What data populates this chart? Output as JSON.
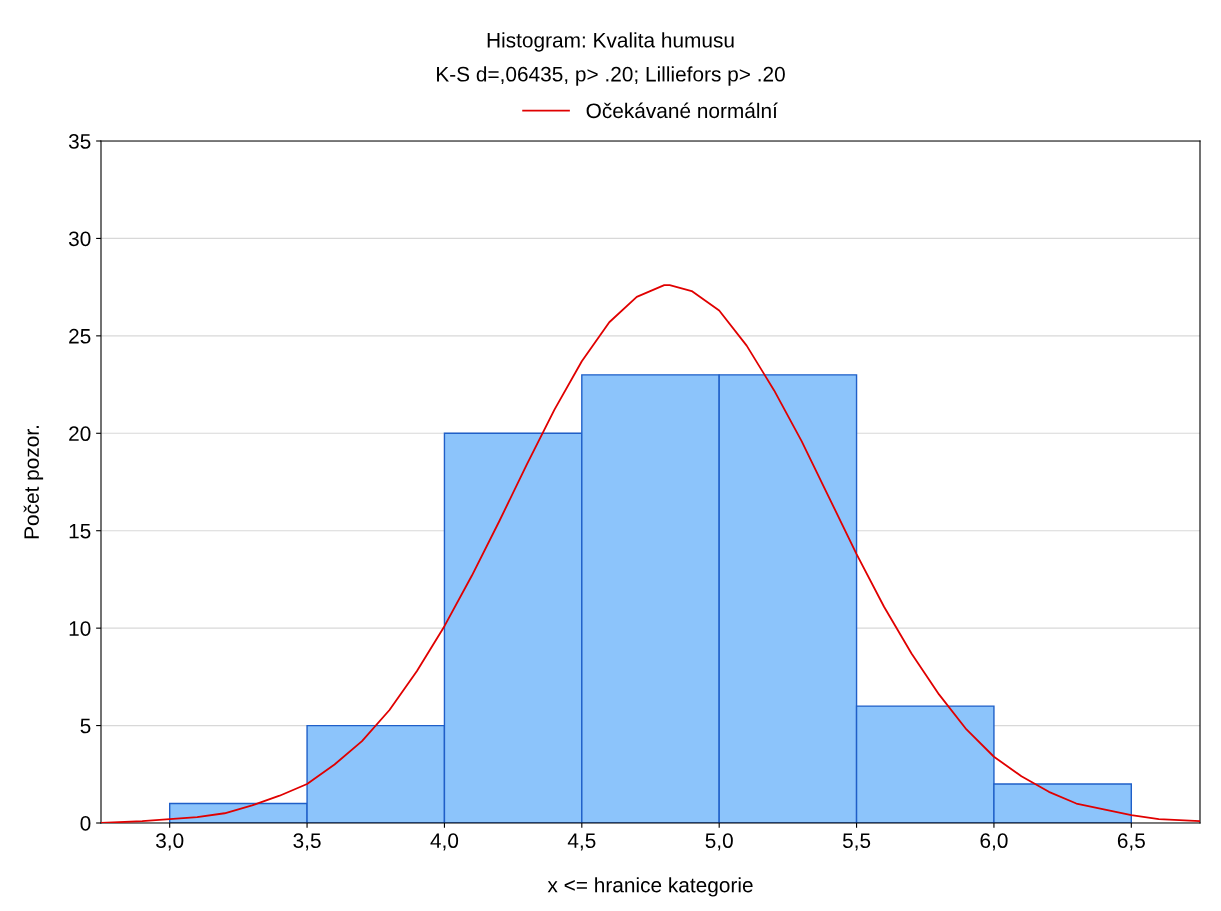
{
  "chart_data": {
    "type": "histogram",
    "title": "Histogram: Kvalita humusu",
    "subtitle": "K-S d=,06435, p> .20; Lilliefors p> .20",
    "xlabel": "x <= hranice kategorie",
    "ylabel": "Počet pozor.",
    "bins": [
      3.0,
      3.5,
      4.0,
      4.5,
      5.0,
      5.5,
      6.0,
      6.5
    ],
    "values": [
      1,
      5,
      20,
      23,
      23,
      6,
      2
    ],
    "color": "#8cc4fb",
    "series": [
      {
        "type": "line",
        "name": "Očekávané normální",
        "color": "#e00000",
        "line_style": "solid",
        "x": [
          2.75,
          2.9,
          3.0,
          3.1,
          3.2,
          3.3,
          3.4,
          3.5,
          3.6,
          3.7,
          3.8,
          3.9,
          4.0,
          4.1,
          4.2,
          4.3,
          4.4,
          4.5,
          4.6,
          4.7,
          4.8,
          4.82,
          4.9,
          5.0,
          5.1,
          5.2,
          5.3,
          5.4,
          5.5,
          5.6,
          5.7,
          5.8,
          5.9,
          6.0,
          6.1,
          6.2,
          6.3,
          6.4,
          6.5,
          6.6,
          6.75
        ],
        "values": [
          0.0,
          0.1,
          0.2,
          0.3,
          0.5,
          0.9,
          1.4,
          2.0,
          3.0,
          4.2,
          5.8,
          7.8,
          10.1,
          12.7,
          15.5,
          18.4,
          21.2,
          23.7,
          25.7,
          27.0,
          27.6,
          27.6,
          27.3,
          26.3,
          24.5,
          22.2,
          19.6,
          16.7,
          13.8,
          11.1,
          8.7,
          6.6,
          4.8,
          3.4,
          2.4,
          1.6,
          1.0,
          0.7,
          0.4,
          0.2,
          0.1
        ]
      }
    ],
    "xlim": [
      2.75,
      6.75
    ],
    "ylim": [
      0,
      35
    ],
    "xticks": [
      {
        "value": 3.0,
        "label": "3,0"
      },
      {
        "value": 3.5,
        "label": "3,5"
      },
      {
        "value": 4.0,
        "label": "4,0"
      },
      {
        "value": 4.5,
        "label": "4,5"
      },
      {
        "value": 5.0,
        "label": "5,0"
      },
      {
        "value": 5.5,
        "label": "5,5"
      },
      {
        "value": 6.0,
        "label": "6,0"
      },
      {
        "value": 6.5,
        "label": "6,5"
      }
    ],
    "yticks": [
      0,
      5,
      10,
      15,
      20,
      25,
      30,
      35
    ],
    "grid": "y",
    "legend": "top"
  }
}
